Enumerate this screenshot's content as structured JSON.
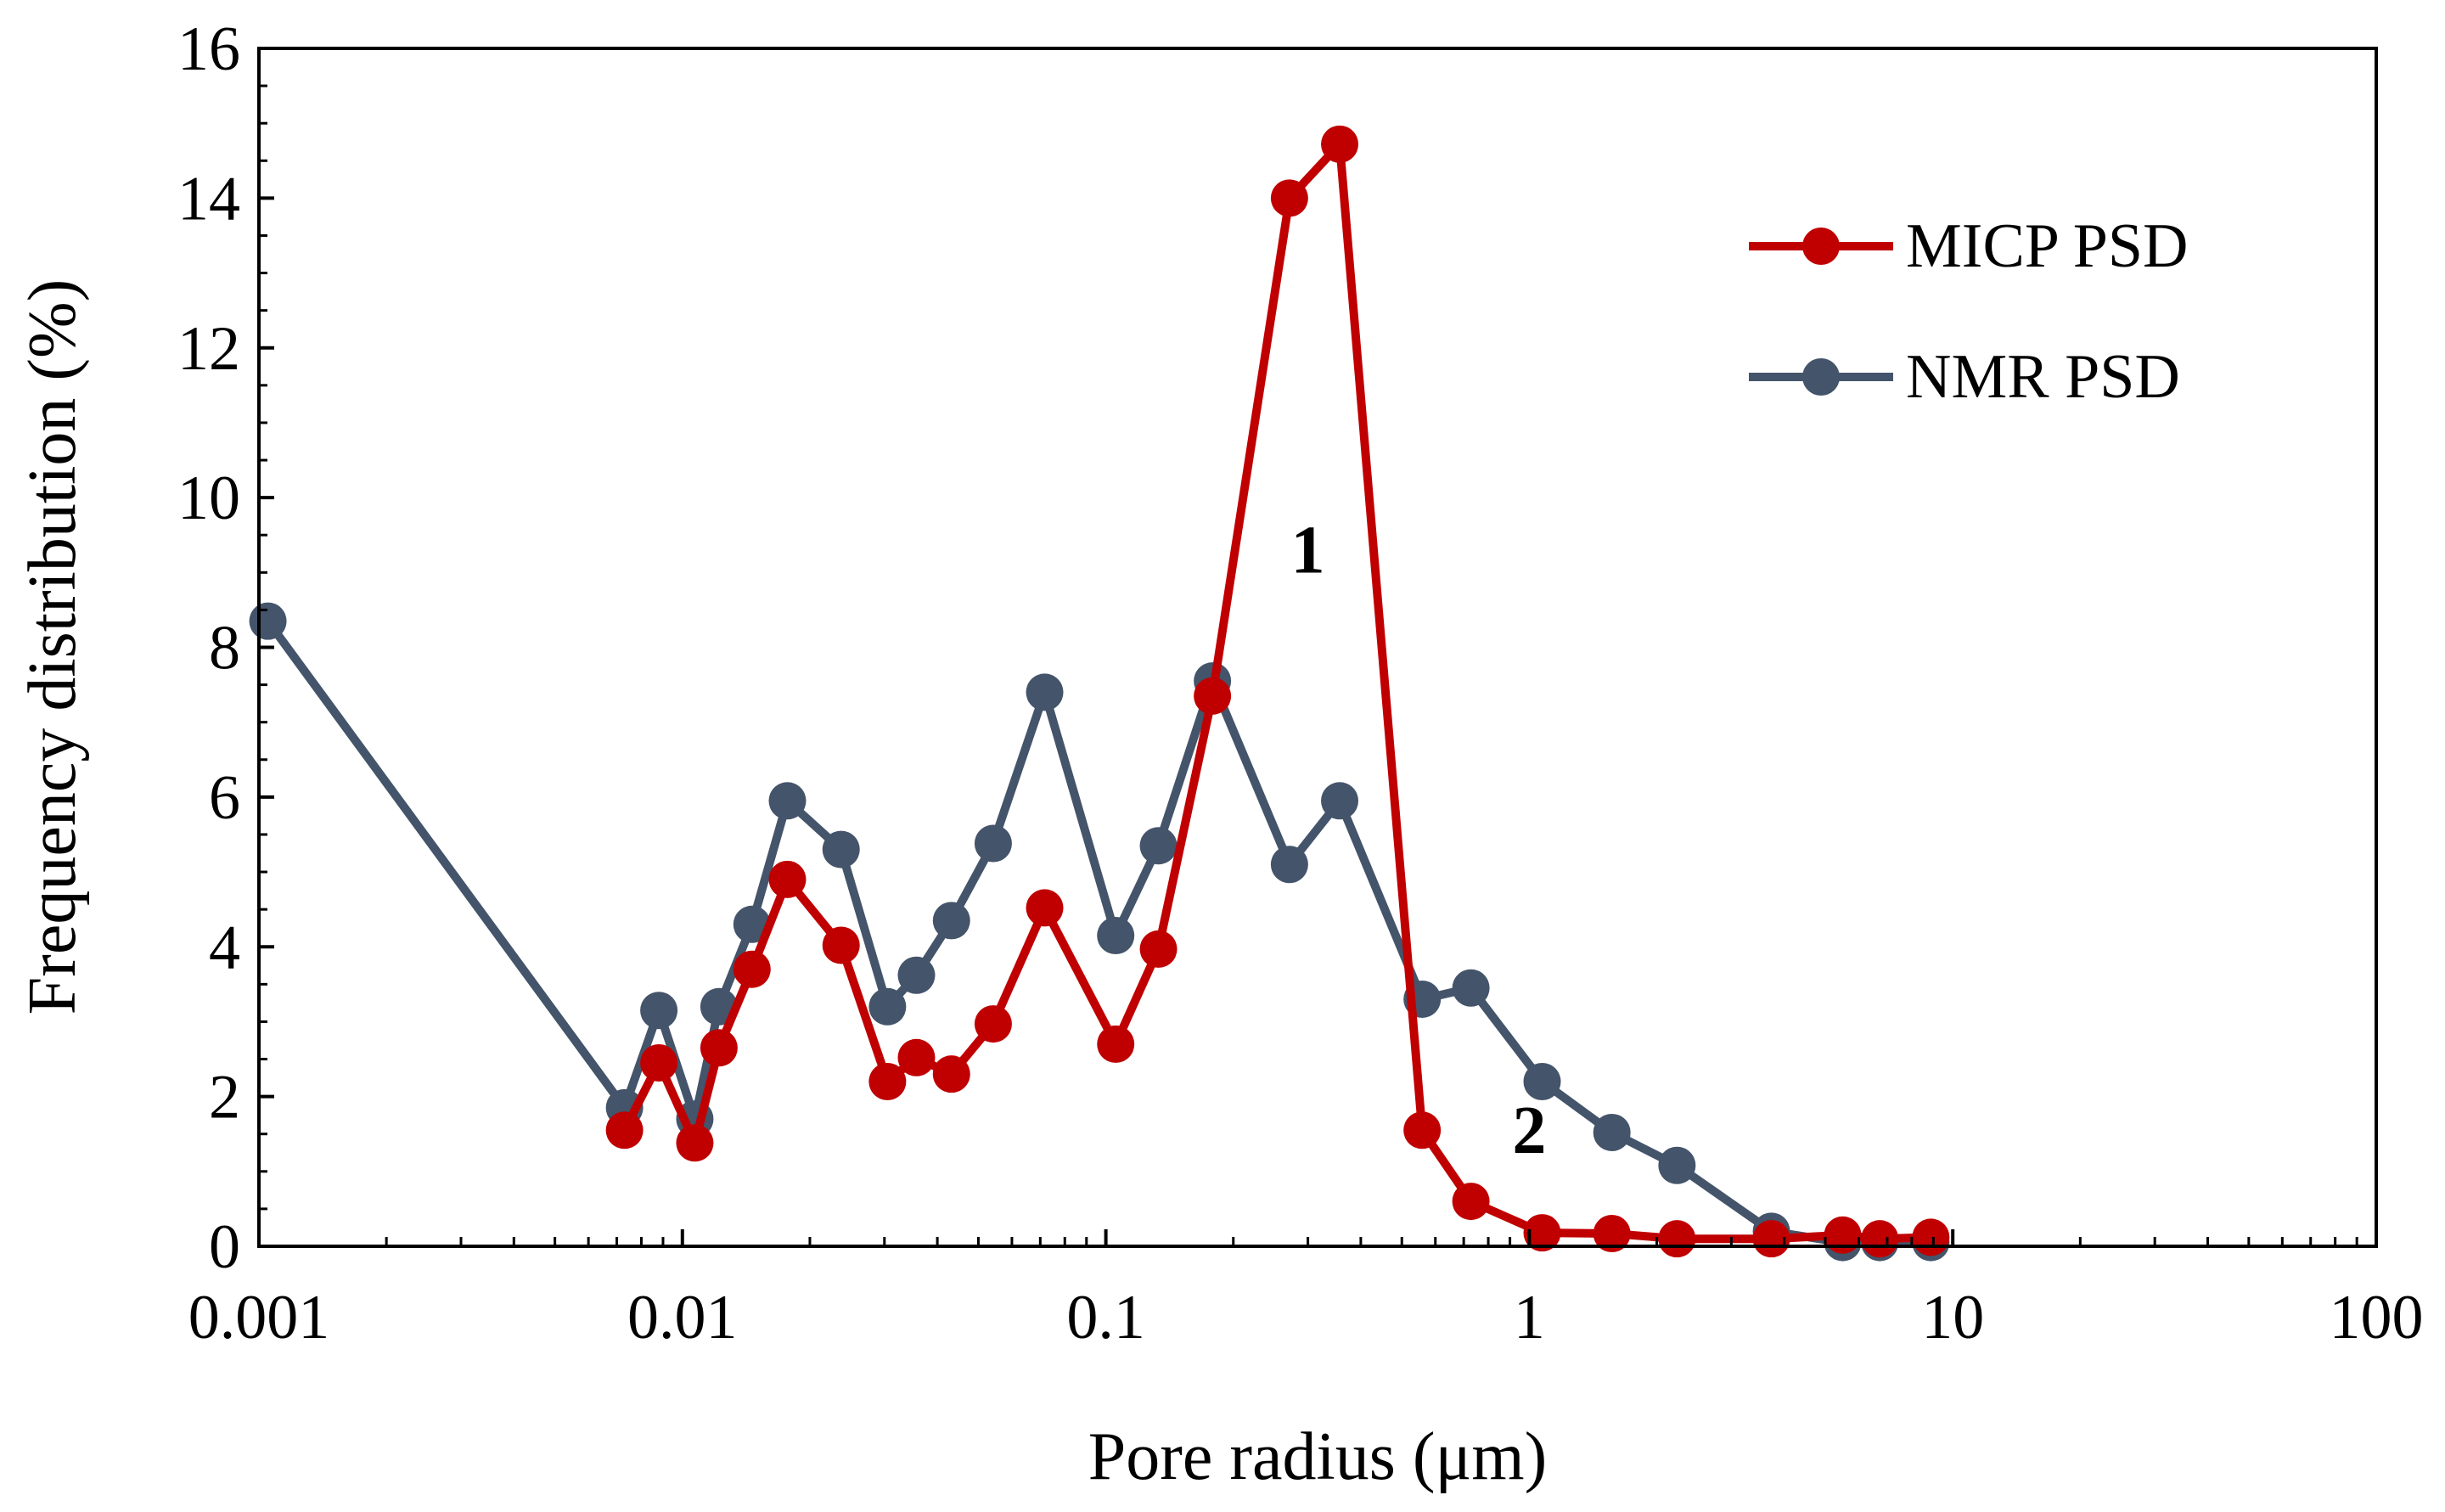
{
  "chart_data": {
    "type": "line",
    "title": "",
    "xlabel": "Pore radius (μm)",
    "ylabel": "Frequency distribution (%)",
    "xscale": "log",
    "xlim": [
      0.001,
      100
    ],
    "ylim": [
      0,
      16
    ],
    "grid": false,
    "legend_position": "top-right",
    "x_ticks": [
      0.001,
      0.01,
      0.1,
      1,
      10,
      100
    ],
    "x_tick_labels": [
      "0.001",
      "0.01",
      "0.1",
      "1",
      "10",
      "100"
    ],
    "y_ticks": [
      0,
      2,
      4,
      6,
      8,
      10,
      12,
      14,
      16
    ],
    "y_tick_labels": [
      "0",
      "2",
      "4",
      "6",
      "8",
      "10",
      "12",
      "14",
      "16"
    ],
    "series": [
      {
        "name": "NMR PSD",
        "color": "#44546A",
        "x": [
          0.00105,
          0.0073,
          0.0088,
          0.0107,
          0.0122,
          0.0146,
          0.0177,
          0.0237,
          0.0305,
          0.0357,
          0.0432,
          0.0542,
          0.0717,
          0.1055,
          0.1331,
          0.1785,
          0.2714,
          0.3566,
          0.5584,
          0.7279,
          1.0722,
          1.5668,
          2.2323,
          3.7298,
          5.496,
          6.7232,
          8.8758
        ],
        "y": [
          8.35,
          1.85,
          3.15,
          1.7,
          3.2,
          4.3,
          5.95,
          5.3,
          3.2,
          3.62,
          4.35,
          5.38,
          7.4,
          4.15,
          5.35,
          7.55,
          5.1,
          5.95,
          3.3,
          3.45,
          2.2,
          1.52,
          1.08,
          0.2,
          0.05,
          0.05,
          0.05
        ]
      },
      {
        "name": "MICP PSD",
        "color": "#C00000",
        "x": [
          0.0073,
          0.0088,
          0.0107,
          0.0122,
          0.0146,
          0.0177,
          0.0237,
          0.0305,
          0.0357,
          0.0432,
          0.0542,
          0.0717,
          0.1055,
          0.1331,
          0.1785,
          0.2714,
          0.3566,
          0.5584,
          0.7279,
          1.0722,
          1.5668,
          2.2323,
          3.7298,
          5.496,
          6.7232,
          8.8758
        ],
        "y": [
          1.55,
          2.45,
          1.38,
          2.65,
          3.7,
          4.9,
          4.02,
          2.2,
          2.52,
          2.3,
          2.97,
          4.52,
          2.7,
          3.97,
          7.35,
          14.0,
          14.72,
          1.55,
          0.6,
          0.18,
          0.17,
          0.1,
          0.1,
          0.15,
          0.1,
          0.12
        ]
      }
    ],
    "annotations": [
      {
        "text": "1",
        "x": 0.3,
        "y": 9.0
      },
      {
        "text": "2",
        "x": 1.0,
        "y": 1.25
      }
    ]
  }
}
